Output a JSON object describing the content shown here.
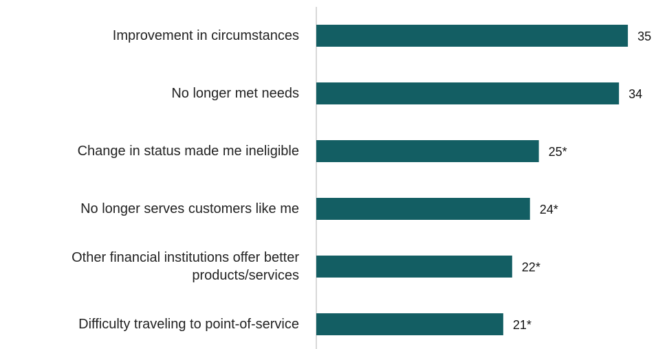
{
  "chart_data": {
    "type": "bar",
    "orientation": "horizontal",
    "categories": [
      "Improvement in circumstances",
      "No longer met needs",
      "Change in status made me ineligible",
      "No longer serves customers like me",
      "Other financial institutions offer better\nproducts/services",
      "Difficulty traveling to point-of-service"
    ],
    "values": [
      35,
      34,
      25,
      24,
      22,
      21
    ],
    "value_labels": [
      "35",
      "34",
      "25*",
      "24*",
      "22*",
      "21*"
    ],
    "color": "#135e63",
    "xlim": [
      0,
      37
    ]
  }
}
